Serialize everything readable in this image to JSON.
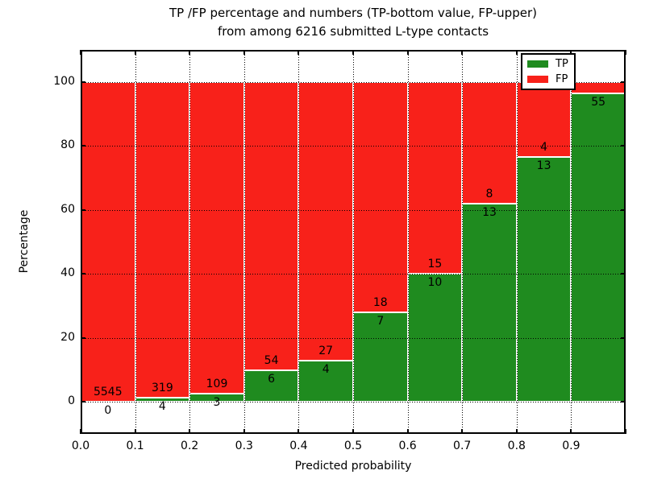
{
  "title": {
    "line1": "TP /FP percentage and numbers (TP-bottom value, FP-upper)",
    "line2": "from among 6216 submitted L-type contacts"
  },
  "axes": {
    "xlabel": "Predicted probability",
    "ylabel": "Percentage",
    "x_ticks": [
      {
        "v": 0.0,
        "label": "0.0"
      },
      {
        "v": 0.1,
        "label": "0.1"
      },
      {
        "v": 0.2,
        "label": "0.2"
      },
      {
        "v": 0.3,
        "label": "0.3"
      },
      {
        "v": 0.4,
        "label": "0.4"
      },
      {
        "v": 0.5,
        "label": "0.5"
      },
      {
        "v": 0.6,
        "label": "0.6"
      },
      {
        "v": 0.7,
        "label": "0.7"
      },
      {
        "v": 0.8,
        "label": "0.8"
      },
      {
        "v": 0.9,
        "label": "0.9"
      },
      {
        "v": 1.0,
        "label": ""
      }
    ],
    "y_ticks": [
      {
        "v": 0,
        "label": "0"
      },
      {
        "v": 20,
        "label": "20"
      },
      {
        "v": 40,
        "label": "40"
      },
      {
        "v": 60,
        "label": "60"
      },
      {
        "v": 80,
        "label": "80"
      },
      {
        "v": 100,
        "label": "100"
      }
    ]
  },
  "colors": {
    "tp": "#1f8b1f",
    "fp": "#f8211a",
    "grid": "#000000"
  },
  "legend": {
    "items": [
      {
        "label": "TP",
        "color": "#1f8b1f"
      },
      {
        "label": "FP",
        "color": "#f8211a"
      }
    ]
  },
  "chart_data": {
    "type": "bar",
    "stacked": true,
    "title": "TP /FP percentage and numbers (TP-bottom value, FP-upper) from among 6216 submitted L-type contacts",
    "total_contacts": 6216,
    "xlabel": "Predicted probability",
    "ylabel": "Percentage",
    "xlim": [
      0.0,
      1.0
    ],
    "ylim": [
      -10,
      110
    ],
    "grid": true,
    "legend_position": "upper right",
    "bin_width": 0.1,
    "categories": [
      "0.0-0.1",
      "0.1-0.2",
      "0.2-0.3",
      "0.3-0.4",
      "0.4-0.5",
      "0.5-0.6",
      "0.6-0.7",
      "0.7-0.8",
      "0.8-0.9",
      "0.9-1.0"
    ],
    "series": [
      {
        "name": "TP",
        "color": "#1f8b1f",
        "percent": [
          0.0,
          1.2,
          2.7,
          10.0,
          12.9,
          28.0,
          40.0,
          61.9,
          76.5,
          96.5
        ],
        "counts": [
          0,
          4,
          3,
          6,
          4,
          7,
          10,
          13,
          13,
          55
        ]
      },
      {
        "name": "FP",
        "color": "#f8211a",
        "percent": [
          100.0,
          98.8,
          97.3,
          90.0,
          87.1,
          72.0,
          60.0,
          38.1,
          23.5,
          3.5
        ],
        "counts": [
          5545,
          319,
          109,
          54,
          27,
          18,
          15,
          8,
          4,
          null
        ]
      }
    ],
    "bars": [
      {
        "x0": 0.0,
        "tp_pct": 0.0,
        "tp_label": "0",
        "fp_label": "5545"
      },
      {
        "x0": 0.1,
        "tp_pct": 1.2,
        "tp_label": "4",
        "fp_label": "319"
      },
      {
        "x0": 0.2,
        "tp_pct": 2.7,
        "tp_label": "3",
        "fp_label": "109"
      },
      {
        "x0": 0.3,
        "tp_pct": 10.0,
        "tp_label": "6",
        "fp_label": "54"
      },
      {
        "x0": 0.4,
        "tp_pct": 12.9,
        "tp_label": "4",
        "fp_label": "27"
      },
      {
        "x0": 0.5,
        "tp_pct": 28.0,
        "tp_label": "7",
        "fp_label": "18"
      },
      {
        "x0": 0.6,
        "tp_pct": 40.0,
        "tp_label": "10",
        "fp_label": "15"
      },
      {
        "x0": 0.7,
        "tp_pct": 61.9,
        "tp_label": "13",
        "fp_label": "8"
      },
      {
        "x0": 0.8,
        "tp_pct": 76.5,
        "tp_label": "13",
        "fp_label": "4"
      },
      {
        "x0": 0.9,
        "tp_pct": 96.5,
        "tp_label": "55",
        "fp_label": ""
      }
    ]
  }
}
